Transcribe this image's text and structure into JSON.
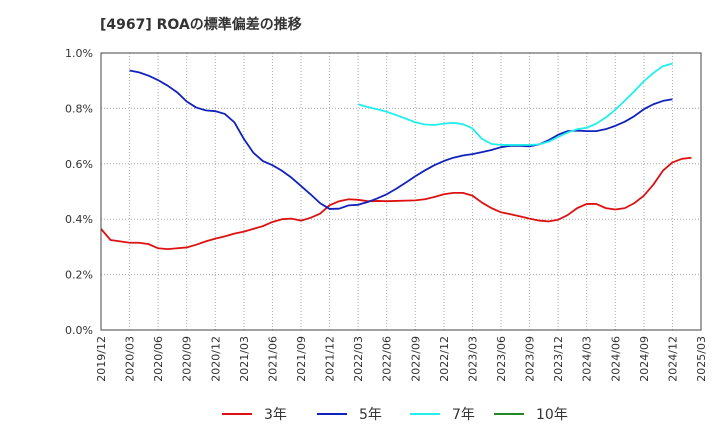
{
  "chart_data": {
    "type": "line",
    "title": "[4967]  ROAの標準偏差の推移",
    "xlabel": "",
    "ylabel": "",
    "ylim": [
      0,
      0.01
    ],
    "y_ticks": [
      "0.0%",
      "0.2%",
      "0.4%",
      "0.6%",
      "0.8%",
      "1.0%"
    ],
    "x_ticks": [
      "2019/12",
      "2020/03",
      "2020/06",
      "2020/09",
      "2020/12",
      "2021/03",
      "2021/06",
      "2021/09",
      "2021/12",
      "2022/03",
      "2022/06",
      "2022/09",
      "2022/12",
      "2023/03",
      "2023/06",
      "2023/09",
      "2023/12",
      "2024/03",
      "2024/06",
      "2024/09",
      "2024/12",
      "2025/03"
    ],
    "grid": true,
    "legend_position": "bottom",
    "x_start": "2019/12",
    "series": [
      {
        "name": "3年",
        "color": "#dd1111",
        "start": "2019/12",
        "values": [
          0.00365,
          0.00325,
          0.0032,
          0.00315,
          0.00315,
          0.0031,
          0.00295,
          0.00292,
          0.00295,
          0.00298,
          0.00308,
          0.0032,
          0.0033,
          0.00338,
          0.00348,
          0.00355,
          0.00365,
          0.00375,
          0.0039,
          0.004,
          0.00402,
          0.00395,
          0.00405,
          0.0042,
          0.0045,
          0.00465,
          0.00472,
          0.0047,
          0.00465,
          0.00466,
          0.00465,
          0.00466,
          0.00467,
          0.00468,
          0.00472,
          0.0048,
          0.0049,
          0.00495,
          0.00495,
          0.00485,
          0.0046,
          0.0044,
          0.00425,
          0.00418,
          0.0041,
          0.00402,
          0.00395,
          0.00392,
          0.00398,
          0.00415,
          0.0044,
          0.00455,
          0.00455,
          0.0044,
          0.00435,
          0.0044,
          0.00458,
          0.00485,
          0.00525,
          0.00575,
          0.00605,
          0.00618,
          0.00622
        ]
      },
      {
        "name": "5年",
        "color": "#1122bb",
        "start": "2020/03",
        "values": [
          0.00937,
          0.0093,
          0.00918,
          0.00902,
          0.00882,
          0.00858,
          0.00825,
          0.00803,
          0.00793,
          0.0079,
          0.0078,
          0.0075,
          0.0069,
          0.0064,
          0.0061,
          0.00595,
          0.00575,
          0.0055,
          0.0052,
          0.0049,
          0.00458,
          0.00437,
          0.00438,
          0.0045,
          0.00452,
          0.00462,
          0.00475,
          0.0049,
          0.0051,
          0.00532,
          0.00555,
          0.00576,
          0.00595,
          0.0061,
          0.00622,
          0.0063,
          0.00635,
          0.00642,
          0.0065,
          0.0066,
          0.00665,
          0.00665,
          0.00663,
          0.0067,
          0.00685,
          0.00705,
          0.00718,
          0.0072,
          0.00718,
          0.00718,
          0.00725,
          0.00737,
          0.00752,
          0.00772,
          0.00797,
          0.00815,
          0.00827,
          0.00833
        ]
      },
      {
        "name": "7年",
        "color": "#22eeee",
        "start": "2022/03",
        "values": [
          0.00815,
          0.00805,
          0.00797,
          0.00788,
          0.00776,
          0.00763,
          0.0075,
          0.00742,
          0.0074,
          0.00745,
          0.00748,
          0.00743,
          0.00728,
          0.0069,
          0.00672,
          0.00668,
          0.00668,
          0.00668,
          0.00668,
          0.0067,
          0.0068,
          0.00697,
          0.00713,
          0.00725,
          0.0073,
          0.00745,
          0.00767,
          0.00795,
          0.00828,
          0.00862,
          0.00898,
          0.00928,
          0.00952,
          0.00962
        ]
      },
      {
        "name": "10年",
        "color": "#228822",
        "start": "2022/03",
        "values": []
      }
    ]
  }
}
